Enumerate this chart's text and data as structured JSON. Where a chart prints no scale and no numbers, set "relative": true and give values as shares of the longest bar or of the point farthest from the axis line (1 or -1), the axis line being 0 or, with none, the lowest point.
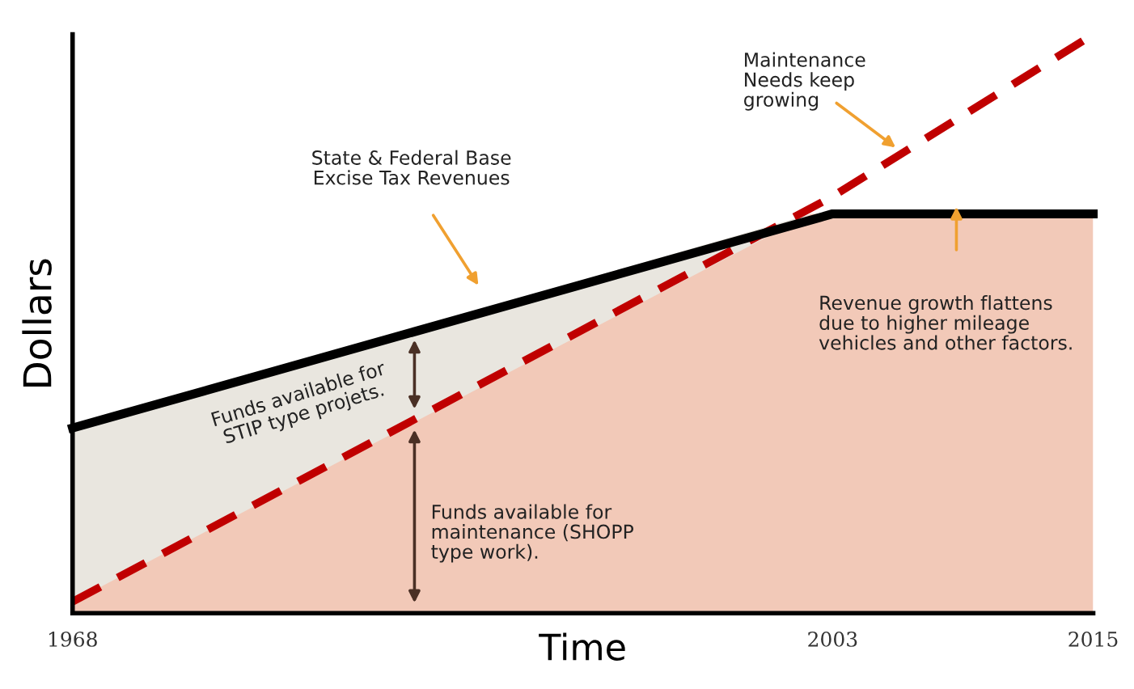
{
  "chart_data": {
    "type": "line",
    "xlabel": "Time",
    "ylabel": "Dollars",
    "relative": true,
    "xlim": [
      1968,
      2015
    ],
    "xticks": [
      1968,
      2003,
      2015
    ],
    "series": [
      {
        "type": "area",
        "color": "#e9e6df",
        "x": [
          1968,
          2002
        ],
        "values": [
          0.32,
          0.69
        ]
      },
      {
        "type": "area",
        "color": "#f2c9b8",
        "x": [
          1968,
          2002,
          2015
        ],
        "values": [
          0.02,
          0.69,
          0.69
        ]
      },
      {
        "type": "line",
        "color": "#c00000",
        "x": [
          1968,
          2003,
          2015
        ],
        "values": [
          0.02,
          0.72,
          1.0
        ],
        "line_style": "dashed"
      },
      {
        "type": "line",
        "color": "#000000",
        "x": [
          1968,
          2003,
          2015
        ],
        "values": [
          0.32,
          0.69,
          0.69
        ],
        "line_style": "solid"
      }
    ],
    "annotations": [
      "State & Federal Base\nExcise Tax Revenues",
      "Maintenance\nNeeds keep\ngrowing",
      "Revenue growth flattens\ndue to higher mileage\nvehicles and other factors.",
      "Funds available for\nSTIP type projets.",
      "Funds available for\nmaintenance (SHOPP\ntype work)."
    ]
  }
}
